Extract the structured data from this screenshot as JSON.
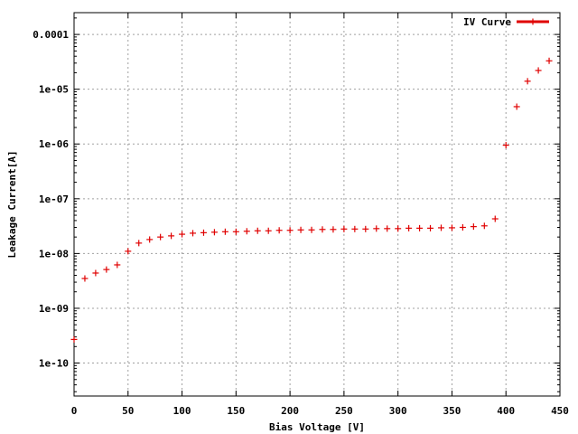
{
  "chart_data": {
    "type": "scatter",
    "xlabel": "Bias Voltage [V]",
    "ylabel": "Leakage Current[A]",
    "xlim": [
      0,
      450
    ],
    "ylim": [
      2.5e-11,
      0.00025
    ],
    "yscale": "log",
    "grid": true,
    "legend": "top-right",
    "x_ticks": [
      0,
      50,
      100,
      150,
      200,
      250,
      300,
      350,
      400,
      450
    ],
    "x_tick_labels": [
      "0",
      "50",
      "100",
      "150",
      "200",
      "250",
      "300",
      "350",
      "400",
      "450"
    ],
    "y_ticks": [
      1e-10,
      1e-09,
      1e-08,
      1e-07,
      1e-06,
      1e-05,
      0.0001
    ],
    "y_tick_labels": [
      "1e-10",
      "1e-09",
      "1e-08",
      "1e-07",
      "1e-06",
      "1e-05",
      "0.0001"
    ],
    "series": [
      {
        "name": "IV Curve",
        "color": "#e00000",
        "marker": "plus",
        "x": [
          0,
          10,
          20,
          30,
          40,
          50,
          60,
          70,
          80,
          90,
          100,
          110,
          120,
          130,
          140,
          150,
          160,
          170,
          180,
          190,
          200,
          210,
          220,
          230,
          240,
          250,
          260,
          270,
          280,
          290,
          300,
          310,
          320,
          330,
          340,
          350,
          360,
          370,
          380,
          390,
          400,
          410,
          420,
          430,
          440
        ],
        "y": [
          2.7e-10,
          3.5e-09,
          4.4e-09,
          5.1e-09,
          6.2e-09,
          1.1e-08,
          1.55e-08,
          1.8e-08,
          2e-08,
          2.1e-08,
          2.25e-08,
          2.35e-08,
          2.4e-08,
          2.45e-08,
          2.5e-08,
          2.5e-08,
          2.55e-08,
          2.6e-08,
          2.6e-08,
          2.65e-08,
          2.65e-08,
          2.7e-08,
          2.7e-08,
          2.75e-08,
          2.75e-08,
          2.8e-08,
          2.8e-08,
          2.8e-08,
          2.85e-08,
          2.85e-08,
          2.85e-08,
          2.9e-08,
          2.9e-08,
          2.9e-08,
          2.95e-08,
          2.95e-08,
          3e-08,
          3.1e-08,
          3.2e-08,
          4.3e-08,
          9.5e-07,
          4.8e-06,
          1.4e-05,
          2.2e-05,
          3.3e-05
        ]
      }
    ]
  }
}
